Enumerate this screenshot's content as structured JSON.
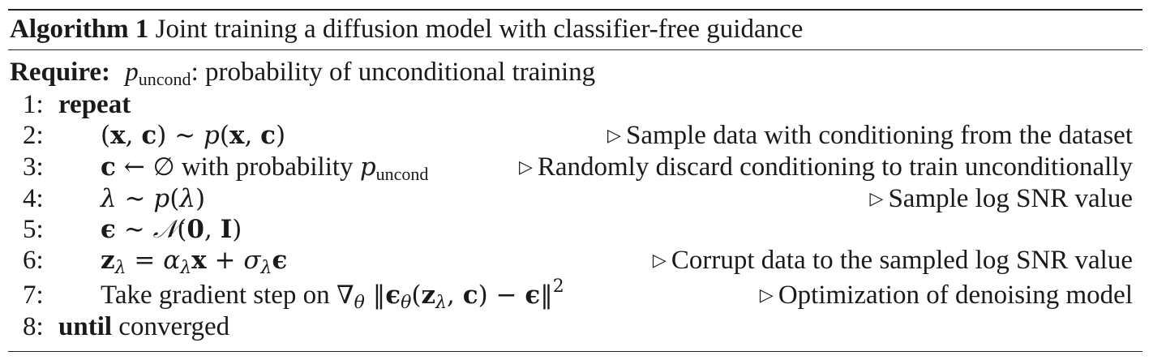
{
  "algorithm": {
    "label": "Algorithm 1",
    "title": "Joint training a diffusion model with classifier-free guidance"
  },
  "require": {
    "keyword": "Require:",
    "var": "p",
    "var_sub": "uncond",
    "text": ": probability of unconditional training"
  },
  "lines": [
    {
      "no": "1:",
      "keyword": "repeat"
    },
    {
      "no": "2:",
      "comment": "Sample data with conditioning from the dataset"
    },
    {
      "no": "3:",
      "text": "with probability",
      "var_sub": "uncond",
      "comment": "Randomly discard conditioning to train unconditionally"
    },
    {
      "no": "4:",
      "comment": "Sample log SNR value"
    },
    {
      "no": "5:"
    },
    {
      "no": "6:",
      "comment": "Corrupt data to the sampled log SNR value"
    },
    {
      "no": "7:",
      "text": "Take gradient step on",
      "comment": "Optimization of denoising model"
    },
    {
      "no": "8:",
      "keyword": "until",
      "text": "converged"
    }
  ],
  "icons": {
    "comment_marker": "triangle-right-icon"
  }
}
